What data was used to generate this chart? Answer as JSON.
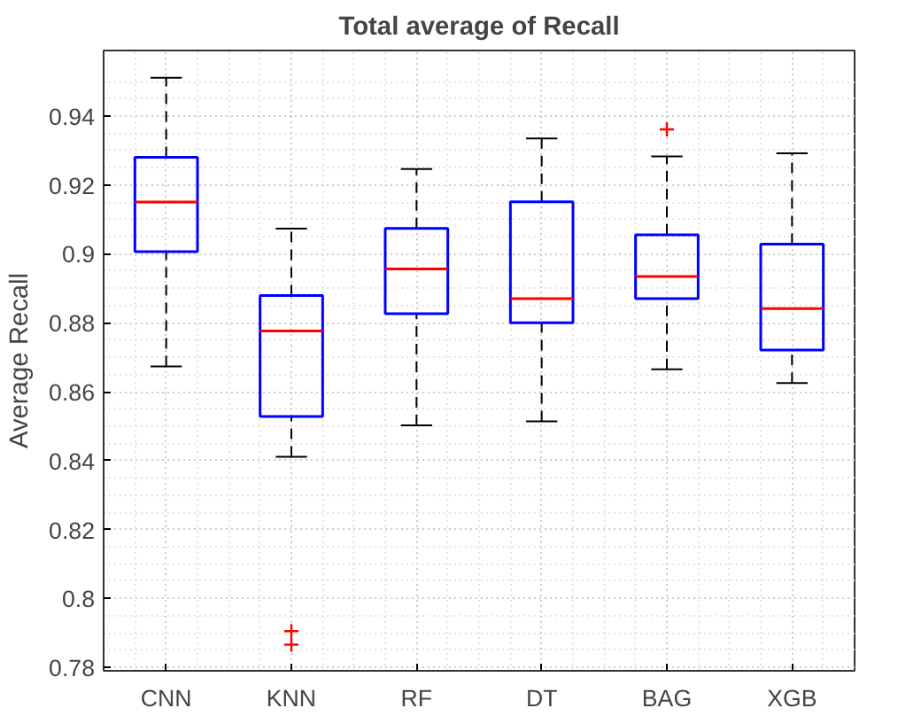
{
  "chart_data": {
    "type": "box",
    "title": "Total average of Recall",
    "ylabel": "Average Recall",
    "categories": [
      "CNN",
      "KNN",
      "RF",
      "DT",
      "BAG",
      "XGB"
    ],
    "boxes": [
      {
        "low": 0.8673,
        "q1": 0.9006,
        "median": 0.915,
        "q3": 0.928,
        "high": 0.9511
      },
      {
        "low": 0.8411,
        "q1": 0.8528,
        "median": 0.8776,
        "q3": 0.8879,
        "high": 0.9073,
        "outliers": [
          0.7905,
          0.7866
        ]
      },
      {
        "low": 0.8502,
        "q1": 0.8826,
        "median": 0.8956,
        "q3": 0.9074,
        "high": 0.9246
      },
      {
        "low": 0.8514,
        "q1": 0.88,
        "median": 0.887,
        "q3": 0.9151,
        "high": 0.9335
      },
      {
        "low": 0.8665,
        "q1": 0.887,
        "median": 0.8934,
        "q3": 0.9055,
        "high": 0.9283,
        "outliers": [
          0.9361
        ]
      },
      {
        "low": 0.8625,
        "q1": 0.8721,
        "median": 0.8841,
        "q3": 0.9028,
        "high": 0.9292
      }
    ],
    "color": "#0000ff",
    "marker": "cross",
    "ylim": [
      0.779,
      0.959
    ],
    "yticks": [
      0.78,
      0.8,
      0.82,
      0.84,
      0.86,
      0.88,
      0.9,
      0.92,
      0.94
    ],
    "grid": true
  }
}
